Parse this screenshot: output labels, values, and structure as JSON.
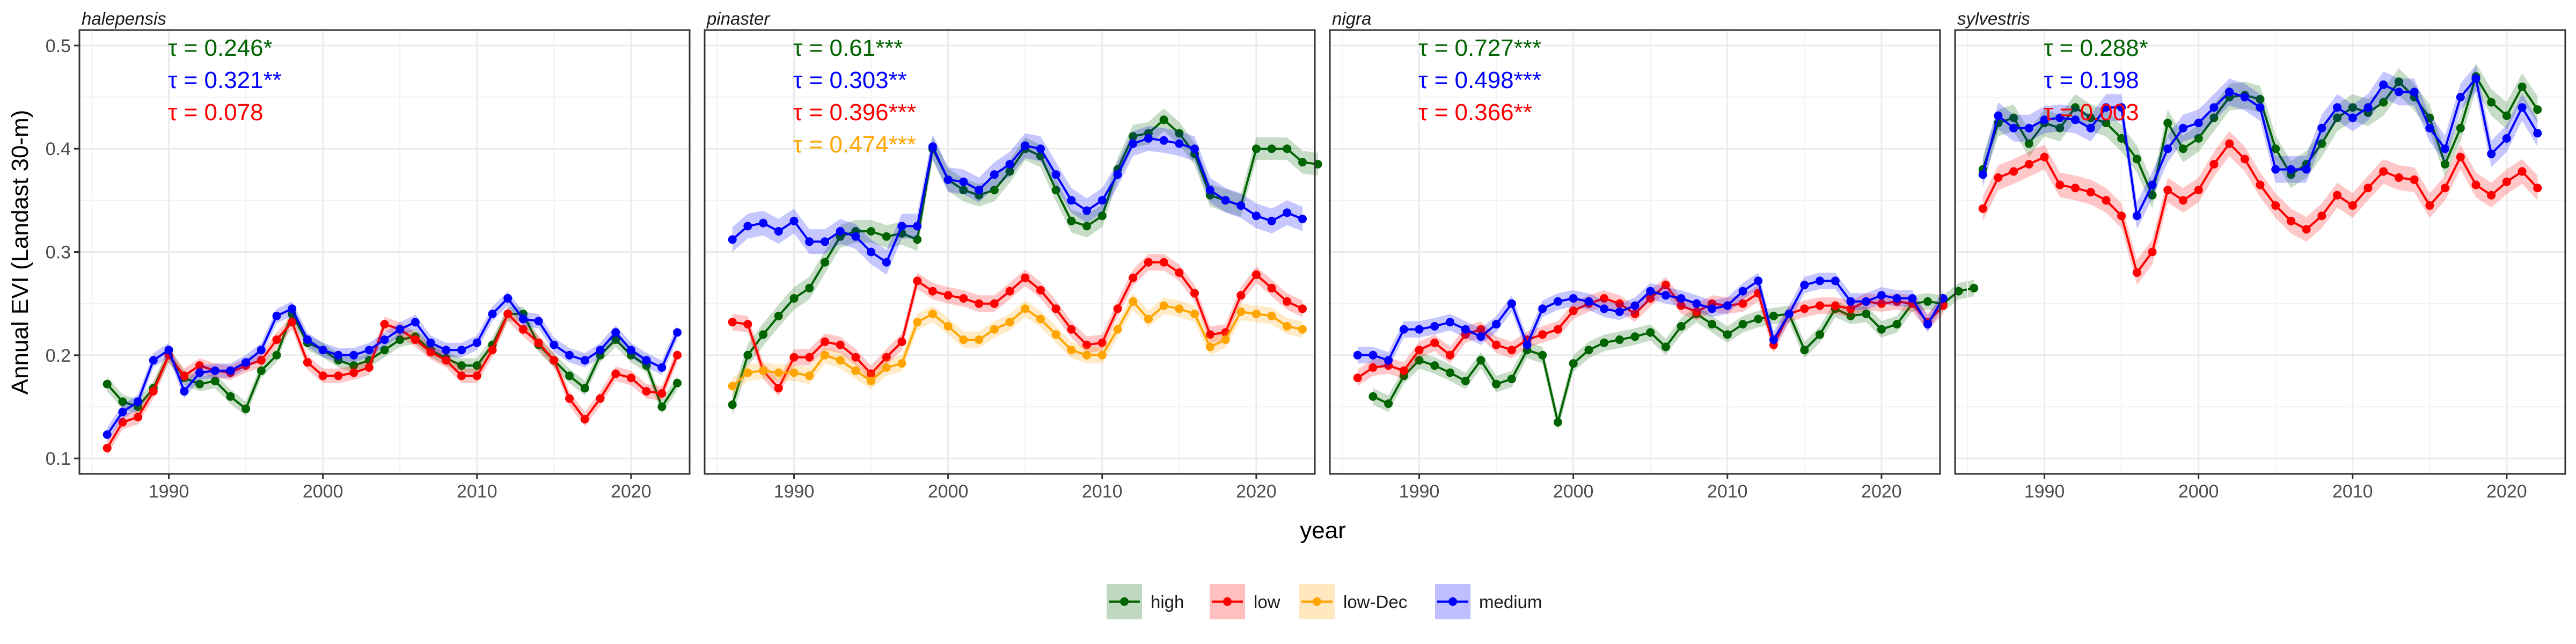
{
  "chart_data": {
    "type": "line",
    "ylabel": "Annual EVI (Landast 30-m)",
    "xlabel": "year",
    "x_ticks": [
      1990,
      2000,
      2010,
      2020
    ],
    "y_ticks": [
      0.1,
      0.2,
      0.3,
      0.4,
      0.5
    ],
    "xlim": [
      1984.2,
      2023.8
    ],
    "ylim": [
      0.085,
      0.515
    ],
    "grid": true,
    "legend_position": "bottom",
    "series_meta": [
      {
        "key": "high",
        "name": "high",
        "color": "#006400"
      },
      {
        "key": "low",
        "name": "low",
        "color": "#ff0000"
      },
      {
        "key": "low-Dec",
        "name": "low-Dec",
        "color": "#ffa500"
      },
      {
        "key": "medium",
        "name": "medium",
        "color": "#0000ff"
      }
    ],
    "panels": [
      {
        "title": "halepensis",
        "annotations": [
          {
            "text": "τ = 0.246*",
            "color": "#006400"
          },
          {
            "text": "τ = 0.321**",
            "color": "#0000ff"
          },
          {
            "text": "τ = 0.078",
            "color": "#ff0000"
          }
        ],
        "series": [
          {
            "key": "high",
            "start": 1986,
            "ci": 0.007,
            "values": [
              0.172,
              0.155,
              0.15,
              0.168,
              0.2,
              0.178,
              0.172,
              0.175,
              0.16,
              0.148,
              0.185,
              0.2,
              0.24,
              0.212,
              0.205,
              0.195,
              0.19,
              0.195,
              0.205,
              0.215,
              0.218,
              0.205,
              0.197,
              0.19,
              0.19,
              0.21,
              0.24,
              0.24,
              0.21,
              0.195,
              0.18,
              0.168,
              0.2,
              0.215,
              0.2,
              0.19,
              0.15,
              0.173
            ]
          },
          {
            "key": "low",
            "start": 1986,
            "ci": 0.007,
            "values": [
              0.11,
              0.135,
              0.14,
              0.165,
              0.2,
              0.18,
              0.19,
              0.185,
              0.183,
              0.19,
              0.195,
              0.215,
              0.232,
              0.193,
              0.18,
              0.18,
              0.183,
              0.188,
              0.23,
              0.225,
              0.215,
              0.203,
              0.195,
              0.18,
              0.18,
              0.205,
              0.24,
              0.225,
              0.212,
              0.195,
              0.158,
              0.138,
              0.158,
              0.182,
              0.178,
              0.165,
              0.163,
              0.2
            ]
          },
          {
            "key": "medium",
            "start": 1986,
            "ci": 0.007,
            "values": [
              0.123,
              0.145,
              0.155,
              0.195,
              0.205,
              0.165,
              0.183,
              0.185,
              0.185,
              0.193,
              0.205,
              0.238,
              0.245,
              0.215,
              0.205,
              0.2,
              0.2,
              0.205,
              0.215,
              0.225,
              0.232,
              0.212,
              0.205,
              0.205,
              0.212,
              0.24,
              0.255,
              0.235,
              0.233,
              0.21,
              0.2,
              0.195,
              0.205,
              0.222,
              0.205,
              0.195,
              0.188,
              0.222
            ]
          }
        ]
      },
      {
        "title": "pinaster",
        "annotations": [
          {
            "text": "τ = 0.61***",
            "color": "#006400"
          },
          {
            "text": "τ = 0.303**",
            "color": "#0000ff"
          },
          {
            "text": "τ = 0.396***",
            "color": "#ff0000"
          },
          {
            "text": "τ = 0.474***",
            "color": "#ffa500"
          }
        ],
        "series": [
          {
            "key": "high",
            "start": 1986,
            "ci": 0.011,
            "values": [
              0.152,
              0.2,
              0.22,
              0.238,
              0.255,
              0.265,
              0.29,
              0.315,
              0.32,
              0.32,
              0.315,
              0.318,
              0.312,
              0.4,
              0.37,
              0.36,
              0.355,
              0.36,
              0.378,
              0.4,
              0.393,
              0.36,
              0.33,
              0.325,
              0.335,
              0.38,
              0.412,
              0.415,
              0.428,
              0.415,
              0.395,
              0.355,
              0.35,
              0.345,
              0.4,
              0.4,
              0.4,
              0.387,
              0.385
            ]
          },
          {
            "key": "low",
            "start": 1986,
            "ci": 0.008,
            "values": [
              0.232,
              0.23,
              0.185,
              0.168,
              0.198,
              0.198,
              0.213,
              0.21,
              0.198,
              0.182,
              0.198,
              0.213,
              0.272,
              0.262,
              0.258,
              0.255,
              0.25,
              0.25,
              0.262,
              0.275,
              0.263,
              0.245,
              0.225,
              0.21,
              0.212,
              0.245,
              0.275,
              0.29,
              0.29,
              0.28,
              0.26,
              0.22,
              0.222,
              0.258,
              0.278,
              0.265,
              0.252,
              0.245
            ]
          },
          {
            "key": "low-Dec",
            "start": 1986,
            "ci": 0.008,
            "values": [
              0.17,
              0.183,
              0.185,
              0.183,
              0.183,
              0.18,
              0.2,
              0.195,
              0.185,
              0.175,
              0.188,
              0.192,
              0.232,
              0.24,
              0.228,
              0.215,
              0.215,
              0.225,
              0.232,
              0.245,
              0.235,
              0.22,
              0.205,
              0.2,
              0.2,
              0.225,
              0.252,
              0.235,
              0.248,
              0.245,
              0.24,
              0.208,
              0.215,
              0.242,
              0.24,
              0.238,
              0.228,
              0.225
            ]
          },
          {
            "key": "medium",
            "start": 1986,
            "ci": 0.012,
            "values": [
              0.312,
              0.325,
              0.328,
              0.32,
              0.33,
              0.31,
              0.31,
              0.32,
              0.315,
              0.3,
              0.29,
              0.325,
              0.325,
              0.402,
              0.37,
              0.368,
              0.36,
              0.375,
              0.385,
              0.403,
              0.4,
              0.375,
              0.35,
              0.34,
              0.35,
              0.375,
              0.405,
              0.41,
              0.408,
              0.405,
              0.4,
              0.36,
              0.35,
              0.345,
              0.335,
              0.33,
              0.338,
              0.332
            ]
          }
        ]
      },
      {
        "title": "nigra",
        "annotations": [
          {
            "text": "τ = 0.727***",
            "color": "#006400"
          },
          {
            "text": "τ = 0.498***",
            "color": "#0000ff"
          },
          {
            "text": "τ = 0.366**",
            "color": "#ff0000"
          }
        ],
        "series": [
          {
            "key": "high",
            "start": 1987,
            "ci": 0.008,
            "values": [
              0.16,
              0.153,
              0.18,
              0.195,
              0.19,
              0.183,
              0.175,
              0.195,
              0.172,
              0.177,
              0.205,
              0.2,
              0.135,
              0.192,
              0.205,
              0.212,
              0.215,
              0.218,
              0.222,
              0.208,
              0.228,
              0.24,
              0.23,
              0.22,
              0.23,
              0.235,
              0.238,
              0.24,
              0.205,
              0.22,
              0.245,
              0.238,
              0.24,
              0.225,
              0.23,
              0.25,
              0.252,
              0.25,
              0.262,
              0.265
            ]
          },
          {
            "key": "low",
            "start": 1986,
            "ci": 0.008,
            "values": [
              0.178,
              0.188,
              0.19,
              0.185,
              0.205,
              0.212,
              0.2,
              0.22,
              0.225,
              0.21,
              0.205,
              0.215,
              0.22,
              0.225,
              0.243,
              0.25,
              0.255,
              0.25,
              0.24,
              0.255,
              0.268,
              0.248,
              0.242,
              0.25,
              0.248,
              0.25,
              0.26,
              0.21,
              0.24,
              0.245,
              0.248,
              0.248,
              0.245,
              0.252,
              0.25,
              0.252,
              0.25,
              0.232,
              0.248
            ]
          },
          {
            "key": "medium",
            "start": 1986,
            "ci": 0.008,
            "values": [
              0.2,
              0.2,
              0.195,
              0.225,
              0.225,
              0.228,
              0.232,
              0.225,
              0.218,
              0.23,
              0.25,
              0.21,
              0.245,
              0.252,
              0.255,
              0.252,
              0.245,
              0.242,
              0.248,
              0.262,
              0.258,
              0.255,
              0.25,
              0.245,
              0.248,
              0.262,
              0.272,
              0.215,
              0.24,
              0.268,
              0.272,
              0.272,
              0.252,
              0.252,
              0.258,
              0.255,
              0.255,
              0.23,
              0.255
            ]
          }
        ]
      },
      {
        "title": "sylvestris",
        "annotations": [
          {
            "text": "τ = 0.288*",
            "color": "#006400"
          },
          {
            "text": "τ = 0.198",
            "color": "#0000ff"
          },
          {
            "text": "τ = 0.003",
            "color": "#ff0000"
          }
        ],
        "series": [
          {
            "key": "high",
            "start": 1986,
            "ci": 0.013,
            "values": [
              0.38,
              0.425,
              0.43,
              0.405,
              0.425,
              0.42,
              0.44,
              0.43,
              0.425,
              0.41,
              0.39,
              0.355,
              0.425,
              0.4,
              0.41,
              0.43,
              0.45,
              0.452,
              0.448,
              0.4,
              0.375,
              0.385,
              0.405,
              0.43,
              0.44,
              0.435,
              0.445,
              0.465,
              0.45,
              0.43,
              0.385,
              0.42,
              0.47,
              0.445,
              0.432,
              0.46,
              0.438
            ]
          },
          {
            "key": "low",
            "start": 1986,
            "ci": 0.012,
            "values": [
              0.342,
              0.372,
              0.378,
              0.385,
              0.392,
              0.365,
              0.362,
              0.358,
              0.35,
              0.335,
              0.28,
              0.3,
              0.36,
              0.35,
              0.36,
              0.385,
              0.405,
              0.39,
              0.365,
              0.345,
              0.33,
              0.322,
              0.335,
              0.355,
              0.345,
              0.362,
              0.378,
              0.372,
              0.37,
              0.345,
              0.362,
              0.392,
              0.365,
              0.355,
              0.368,
              0.378,
              0.362
            ]
          },
          {
            "key": "medium",
            "start": 1986,
            "ci": 0.013,
            "values": [
              0.375,
              0.432,
              0.42,
              0.42,
              0.428,
              0.43,
              0.428,
              0.42,
              0.44,
              0.44,
              0.335,
              0.365,
              0.4,
              0.42,
              0.425,
              0.44,
              0.455,
              0.45,
              0.44,
              0.38,
              0.38,
              0.38,
              0.42,
              0.44,
              0.43,
              0.44,
              0.462,
              0.455,
              0.455,
              0.42,
              0.4,
              0.45,
              0.468,
              0.395,
              0.41,
              0.44,
              0.415
            ]
          }
        ]
      }
    ]
  }
}
